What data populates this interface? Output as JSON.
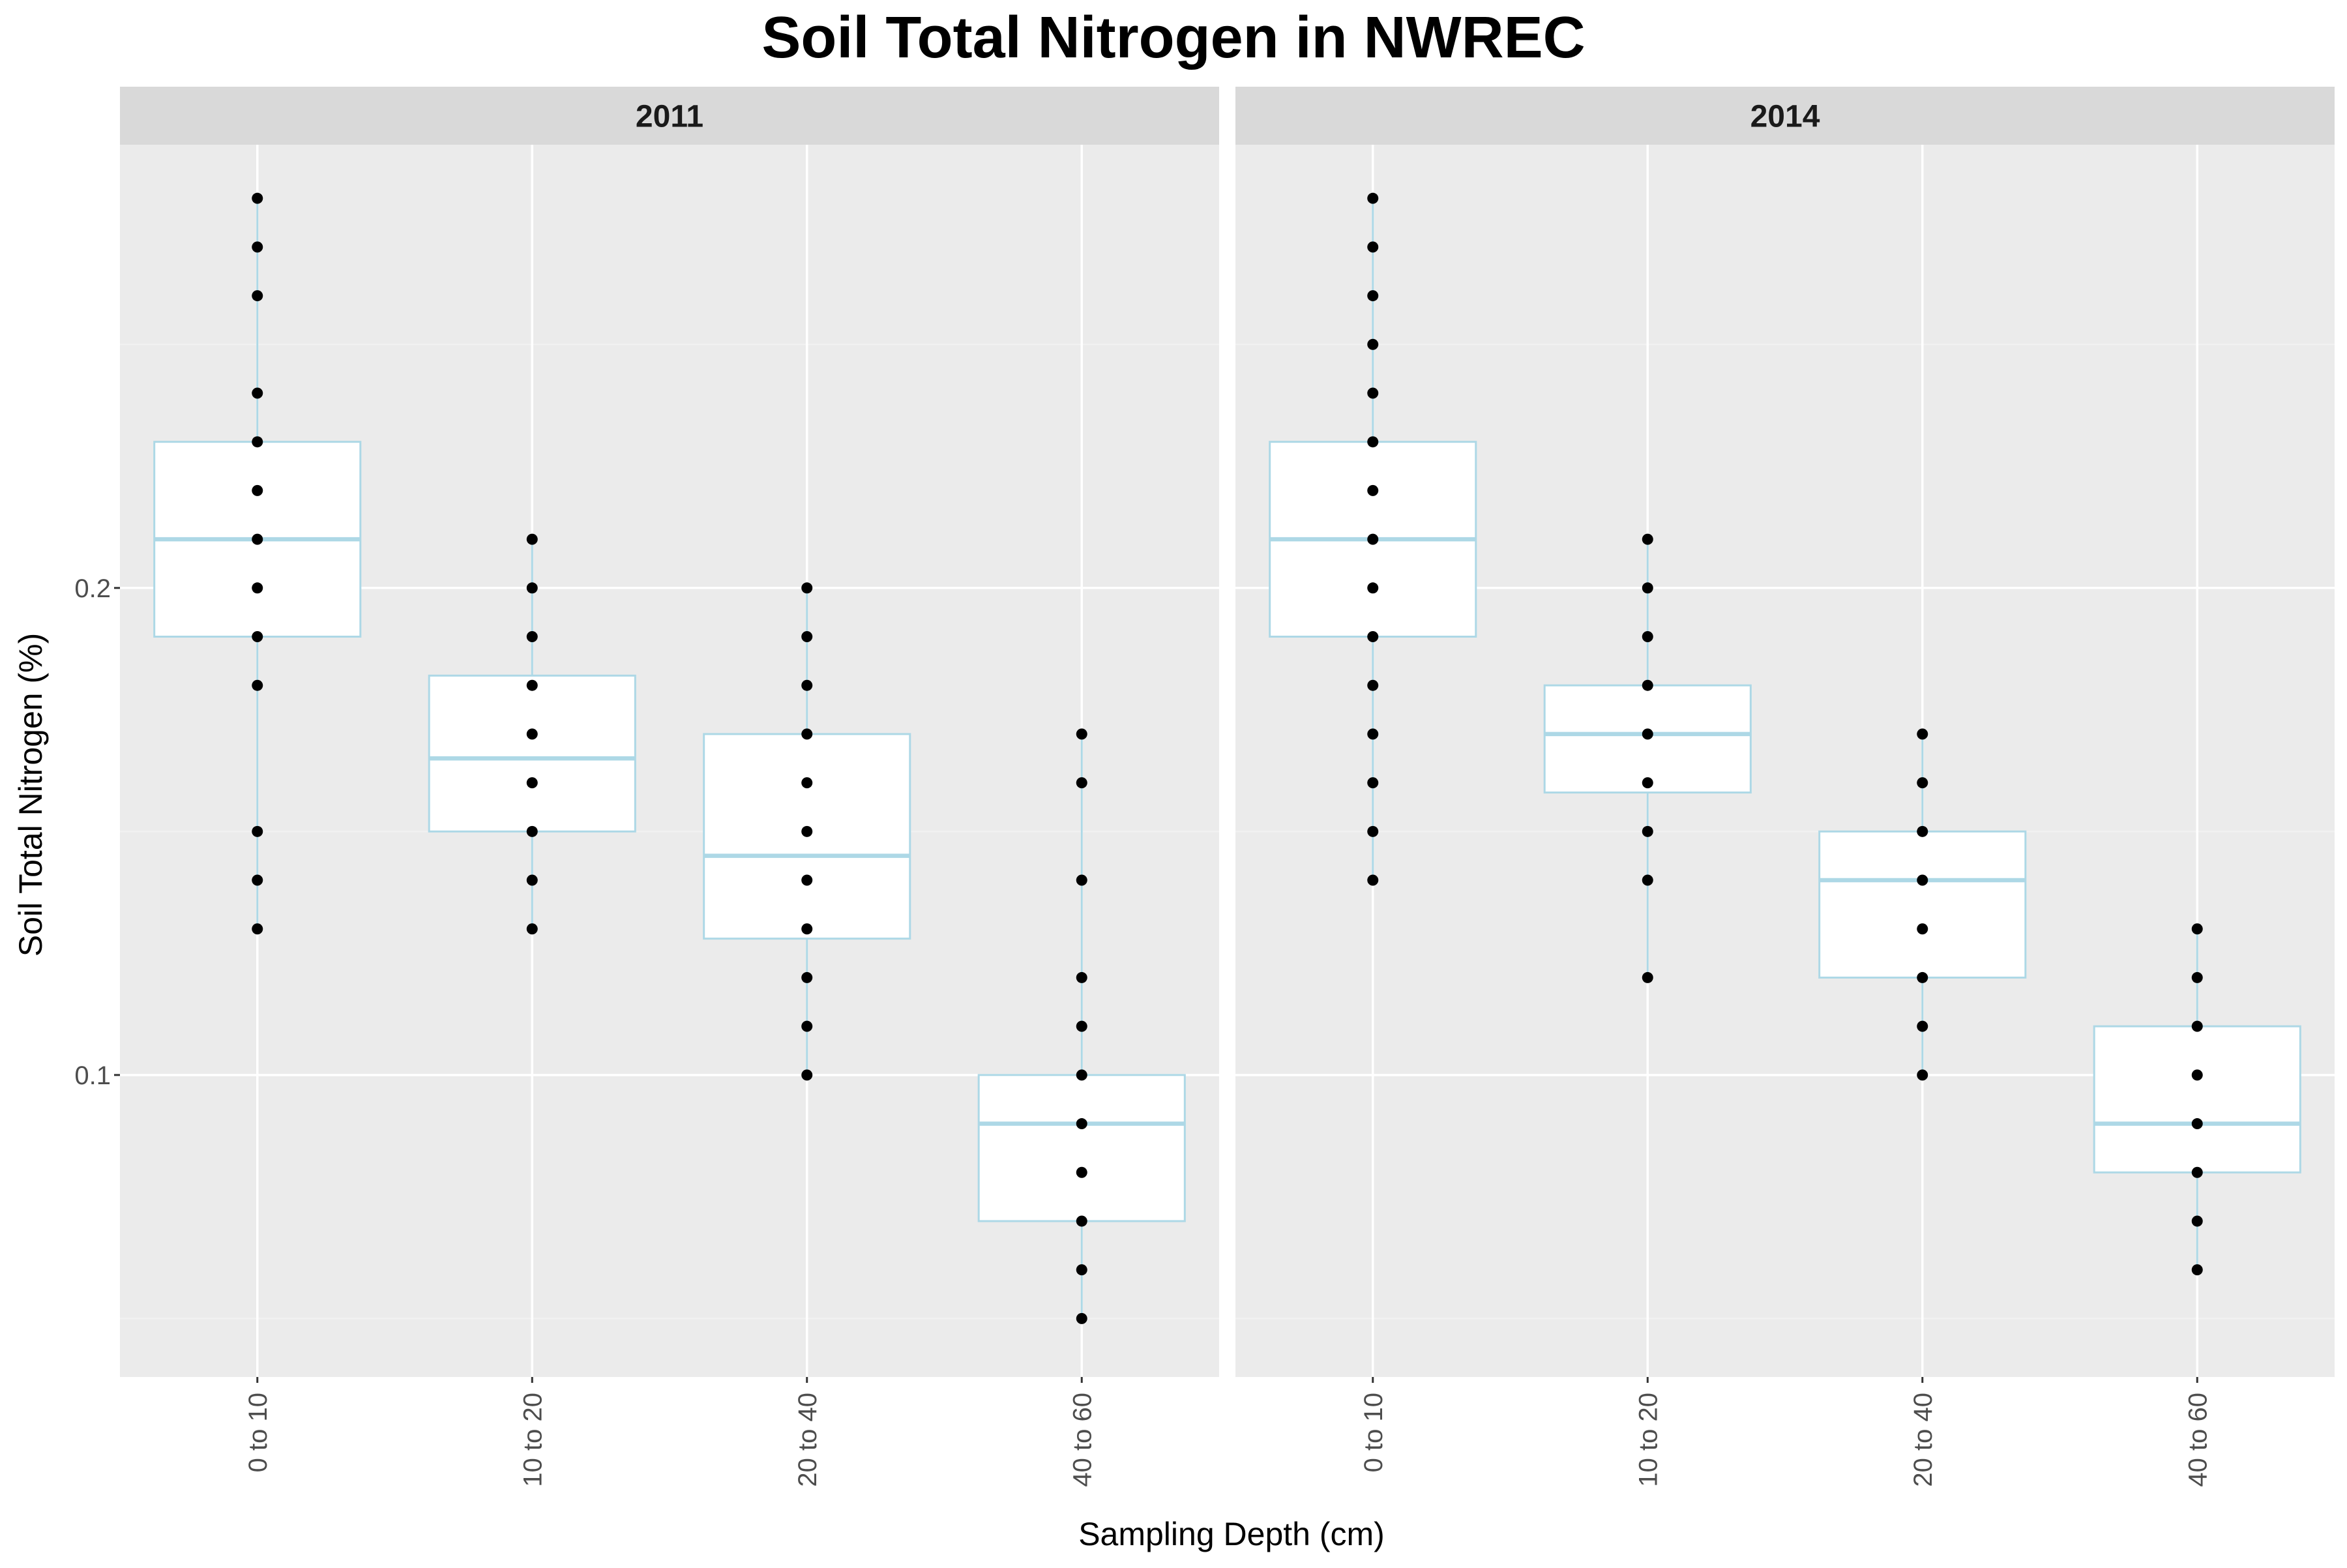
{
  "chart_data": {
    "type": "box",
    "title": "Soil Total Nitrogen in NWREC",
    "xlabel": "Sampling Depth (cm)",
    "ylabel": "Soil Total Nitrogen (%)",
    "categories": [
      "0 to 10",
      "10 to 20",
      "20 to 40",
      "40 to 60"
    ],
    "ylim": [
      0.038,
      0.291
    ],
    "y_ticks": [
      0.1,
      0.2
    ],
    "y_tick_labels": [
      "0.1",
      "0.2"
    ],
    "grid": true,
    "facets": [
      {
        "label": "2011",
        "boxes": [
          {
            "category": "0 to 10",
            "whisker_low": 0.13,
            "q1": 0.19,
            "median": 0.21,
            "q3": 0.23,
            "whisker_high": 0.28,
            "points": [
              0.28,
              0.27,
              0.26,
              0.24,
              0.23,
              0.22,
              0.21,
              0.2,
              0.19,
              0.18,
              0.15,
              0.14,
              0.13
            ]
          },
          {
            "category": "10 to 20",
            "whisker_low": 0.13,
            "q1": 0.15,
            "median": 0.165,
            "q3": 0.182,
            "whisker_high": 0.21,
            "points": [
              0.21,
              0.2,
              0.19,
              0.18,
              0.17,
              0.16,
              0.15,
              0.14,
              0.13
            ]
          },
          {
            "category": "20 to 40",
            "whisker_low": 0.1,
            "q1": 0.128,
            "median": 0.145,
            "q3": 0.17,
            "whisker_high": 0.2,
            "points": [
              0.2,
              0.19,
              0.18,
              0.17,
              0.16,
              0.15,
              0.14,
              0.13,
              0.12,
              0.11,
              0.1
            ]
          },
          {
            "category": "40 to 60",
            "whisker_low": 0.05,
            "q1": 0.07,
            "median": 0.09,
            "q3": 0.1,
            "whisker_high": 0.17,
            "points": [
              0.17,
              0.16,
              0.14,
              0.12,
              0.11,
              0.1,
              0.09,
              0.08,
              0.07,
              0.06,
              0.05
            ]
          }
        ]
      },
      {
        "label": "2014",
        "boxes": [
          {
            "category": "0 to 10",
            "whisker_low": 0.14,
            "q1": 0.19,
            "median": 0.21,
            "q3": 0.23,
            "whisker_high": 0.28,
            "points": [
              0.28,
              0.27,
              0.26,
              0.25,
              0.24,
              0.23,
              0.22,
              0.21,
              0.2,
              0.19,
              0.18,
              0.17,
              0.16,
              0.15,
              0.14
            ]
          },
          {
            "category": "10 to 20",
            "whisker_low": 0.12,
            "q1": 0.158,
            "median": 0.17,
            "q3": 0.18,
            "whisker_high": 0.21,
            "points": [
              0.21,
              0.2,
              0.19,
              0.18,
              0.17,
              0.16,
              0.15,
              0.14,
              0.12
            ]
          },
          {
            "category": "20 to 40",
            "whisker_low": 0.1,
            "q1": 0.12,
            "median": 0.14,
            "q3": 0.15,
            "whisker_high": 0.17,
            "points": [
              0.17,
              0.16,
              0.15,
              0.14,
              0.13,
              0.12,
              0.11,
              0.1
            ]
          },
          {
            "category": "40 to 60",
            "whisker_low": 0.06,
            "q1": 0.08,
            "median": 0.09,
            "q3": 0.11,
            "whisker_high": 0.13,
            "points": [
              0.13,
              0.12,
              0.11,
              0.1,
              0.09,
              0.08,
              0.07,
              0.06
            ]
          }
        ]
      }
    ],
    "colors": {
      "panel_background": "#ebebeb",
      "strip_background": "#d9d9d9",
      "grid_major": "#ffffff",
      "grid_minor": "#f2f2f2",
      "box_outline": "#add8e6",
      "box_fill": "#ffffff",
      "point": "#000000"
    }
  }
}
